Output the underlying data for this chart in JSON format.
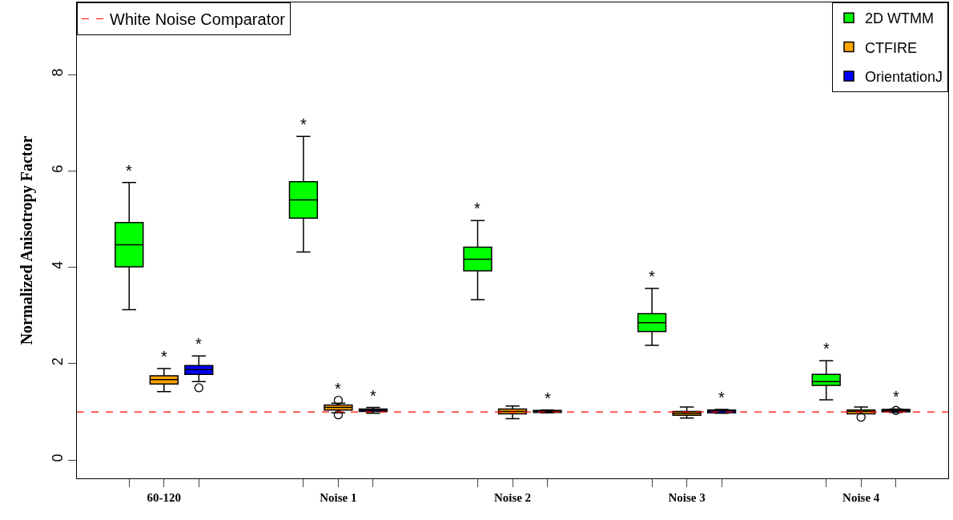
{
  "chart_data": {
    "type": "box",
    "ylabel": "Normalized Anisotropy Factor",
    "categories": [
      "60-120",
      "Noise 1",
      "Noise 2",
      "Noise 3",
      "Noise 4"
    ],
    "ylim": [
      -0.38,
      9.5
    ],
    "yticks": [
      0,
      2,
      4,
      6,
      8
    ],
    "series": [
      {
        "name": "2D WTMM",
        "color": "#00ff00",
        "value_labels": [
          "*",
          "*",
          "*",
          "*",
          "*"
        ],
        "boxes": [
          {
            "low": 3.12,
            "q1": 4.01,
            "median": 4.47,
            "q3": 4.93,
            "high": 5.76
          },
          {
            "low": 4.32,
            "q1": 5.02,
            "median": 5.4,
            "q3": 5.78,
            "high": 6.72
          },
          {
            "low": 3.33,
            "q1": 3.93,
            "median": 4.17,
            "q3": 4.42,
            "high": 4.97
          },
          {
            "low": 2.38,
            "q1": 2.67,
            "median": 2.85,
            "q3": 3.04,
            "high": 3.56
          },
          {
            "low": 1.25,
            "q1": 1.55,
            "median": 1.63,
            "q3": 1.78,
            "high": 2.06
          }
        ]
      },
      {
        "name": "CTFIRE",
        "color": "#ffa500",
        "value_labels": [
          "*",
          "*",
          null,
          null,
          null
        ],
        "boxes": [
          {
            "low": 1.42,
            "q1": 1.58,
            "median": 1.67,
            "q3": 1.75,
            "high": 1.9
          },
          {
            "low": 0.98,
            "q1": 1.04,
            "median": 1.09,
            "q3": 1.14,
            "high": 1.18,
            "outliers": [
              1.24,
              0.94
            ]
          },
          {
            "low": 0.86,
            "q1": 0.96,
            "median": 1.01,
            "q3": 1.06,
            "high": 1.12
          },
          {
            "low": 0.87,
            "q1": 0.93,
            "median": 0.97,
            "q3": 1.01,
            "high": 1.1
          },
          {
            "low": 0.96,
            "q1": 0.96,
            "median": 1.01,
            "q3": 1.04,
            "high": 1.1,
            "outliers": [
              0.89
            ]
          }
        ]
      },
      {
        "name": "OrientationJ",
        "color": "#0000ff",
        "value_labels": [
          "*",
          "*",
          "*",
          "*",
          "*"
        ],
        "boxes": [
          {
            "low": 1.63,
            "q1": 1.78,
            "median": 1.88,
            "q3": 1.96,
            "high": 2.16,
            "outliers": [
              1.5
            ]
          },
          {
            "low": 0.97,
            "q1": 1.01,
            "median": 1.04,
            "q3": 1.06,
            "high": 1.09
          },
          {
            "low": 0.98,
            "q1": 0.99,
            "median": 1.01,
            "q3": 1.03,
            "high": 1.04
          },
          {
            "low": 0.97,
            "q1": 0.98,
            "median": 1.02,
            "q3": 1.04,
            "high": 1.05
          },
          {
            "low": 0.99,
            "q1": 1.0,
            "median": 1.03,
            "q3": 1.05,
            "high": 1.06,
            "outliers": [
              1.03
            ]
          }
        ]
      }
    ],
    "ref_lines": [
      {
        "axis": "y",
        "value": 1,
        "label": "White Noise Comparator",
        "color": "#ff0000",
        "line_style": "dashed"
      }
    ],
    "legend": "top right"
  }
}
